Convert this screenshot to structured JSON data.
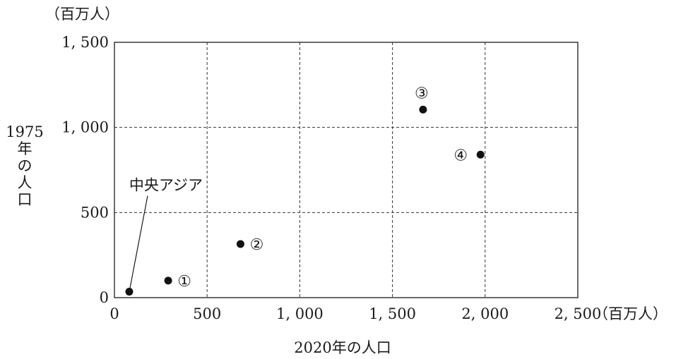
{
  "chart_data": {
    "type": "scatter",
    "x_unit": "（百万人）",
    "y_unit": "（百万人）",
    "xlabel": "2020年の人口",
    "ylabel": [
      "1975",
      "年",
      "の",
      "人",
      "口"
    ],
    "xlim": [
      0,
      2500
    ],
    "ylim": [
      0,
      1500
    ],
    "x_ticks": [
      0,
      500,
      1000,
      1500,
      2000,
      2500
    ],
    "x_tick_labels": [
      "0",
      "500",
      "1, 000",
      "1, 500",
      "2, 000",
      "2, 500"
    ],
    "y_ticks": [
      0,
      500,
      1000,
      1500
    ],
    "y_tick_labels": [
      "0",
      "500",
      "1, 000",
      "1, 500"
    ],
    "grid": true,
    "grid_style": "dashed",
    "points": [
      {
        "label": "中央アジア",
        "x": 80,
        "y": 35,
        "label_style": "callout"
      },
      {
        "label": "①",
        "x": 290,
        "y": 100,
        "label_side": "right"
      },
      {
        "label": "②",
        "x": 680,
        "y": 315,
        "label_side": "right"
      },
      {
        "label": "③",
        "x": 1665,
        "y": 1105,
        "label_side": "above"
      },
      {
        "label": "④",
        "x": 1975,
        "y": 840,
        "label_side": "left"
      }
    ]
  }
}
